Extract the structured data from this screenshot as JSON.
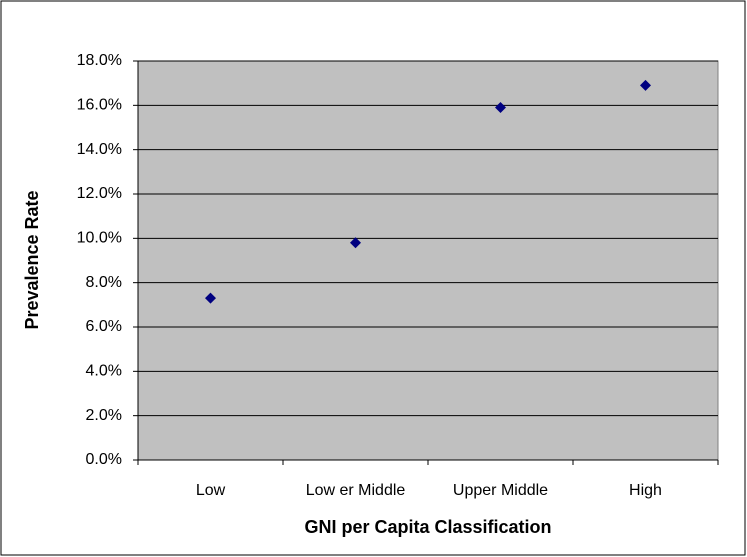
{
  "chart_data": {
    "type": "scatter",
    "categories": [
      "Low",
      "Low er Middle",
      "Upper Middle",
      "High"
    ],
    "values": [
      7.3,
      9.8,
      15.9,
      16.9
    ],
    "color": "#000080",
    "x_label": "GNI per Capita Classification",
    "y_label": "Prevalence Rate",
    "ylim": [
      0,
      18
    ],
    "yticks": [
      {
        "value": 0,
        "label": "0.0%"
      },
      {
        "value": 2,
        "label": "2.0%"
      },
      {
        "value": 4,
        "label": "4.0%"
      },
      {
        "value": 6,
        "label": "6.0%"
      },
      {
        "value": 8,
        "label": "8.0%"
      },
      {
        "value": 10,
        "label": "10.0%"
      },
      {
        "value": 12,
        "label": "12.0%"
      },
      {
        "value": 14,
        "label": "14.0%"
      },
      {
        "value": 16,
        "label": "16.0%"
      },
      {
        "value": 18,
        "label": "18.0%"
      }
    ],
    "grid": true,
    "plot_background": "#c0c0c0"
  }
}
